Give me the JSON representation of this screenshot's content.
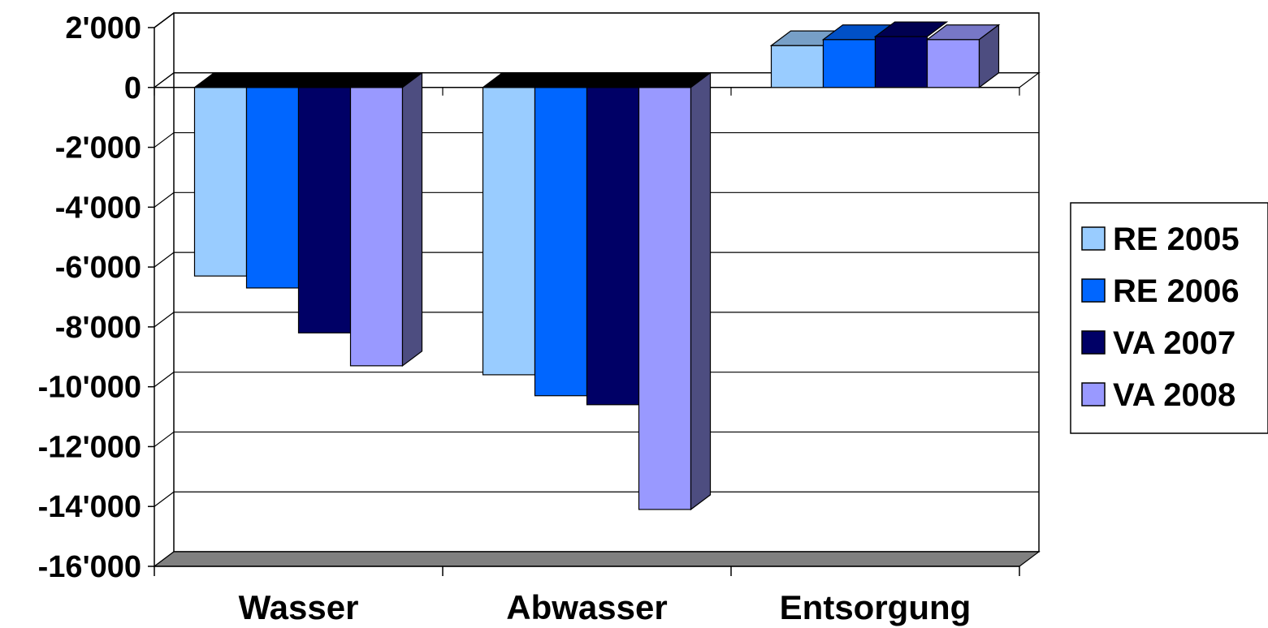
{
  "chart_data": {
    "type": "bar",
    "categories": [
      "Wasser",
      "Abwasser",
      "Entsorgung"
    ],
    "series": [
      {
        "name": "RE 2005",
        "values": [
          -6300,
          -9600,
          1400
        ],
        "color": "#99CCFF"
      },
      {
        "name": "RE 2006",
        "values": [
          -6700,
          -10300,
          1600
        ],
        "color": "#0066FF"
      },
      {
        "name": "VA 2007",
        "values": [
          -8200,
          -10600,
          1700
        ],
        "color": "#000066"
      },
      {
        "name": "VA 2008",
        "values": [
          -9300,
          -14100,
          1600
        ],
        "color": "#9999FF"
      }
    ],
    "y_ticks": [
      "2'000",
      "0",
      "-2'000",
      "-4'000",
      "-6'000",
      "-8'000",
      "-10'000",
      "-12'000",
      "-14'000",
      "-16'000"
    ],
    "ylim": [
      -16000,
      2000
    ],
    "grid": true,
    "legend": "right",
    "three_d": true
  }
}
